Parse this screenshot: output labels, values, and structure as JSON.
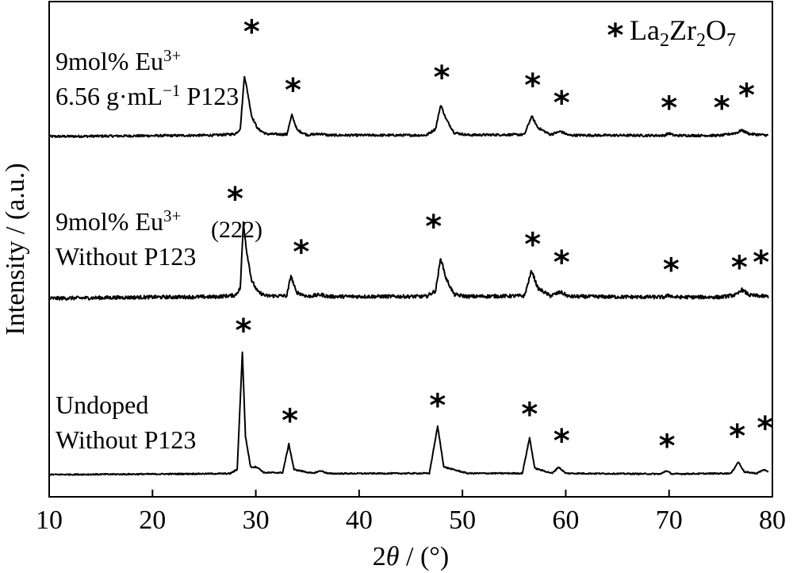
{
  "chart_data": {
    "type": "line",
    "xlabel_italic": "θ",
    "xlabel_prefix": "2",
    "xlabel_suffix": " / (°)",
    "ylabel": "Intensity / (a.u.)",
    "xlim": [
      10,
      80
    ],
    "xticks": [
      "10",
      "20",
      "30",
      "40",
      "50",
      "60",
      "70",
      "80"
    ],
    "grid": false,
    "y_ticks_shown": false,
    "legend": {
      "symbol": "*",
      "parts": [
        {
          "t": "La",
          "sub": false
        },
        {
          "t": "2",
          "sub": true
        },
        {
          "t": "Zr",
          "sub": false
        },
        {
          "t": "2",
          "sub": true
        },
        {
          "t": "O",
          "sub": false
        },
        {
          "t": "7",
          "sub": true
        }
      ],
      "placement": "top-right"
    },
    "series": [
      {
        "label_lines": [
          [
            {
              "t": "9mol% Eu",
              "sup": false
            },
            {
              "t": "3+",
              "sup": true
            }
          ],
          [
            {
              "t": "6.56 g·mL",
              "sup": false
            },
            {
              "t": "−1",
              "sup": true
            },
            {
              "t": " P123",
              "sup": false
            }
          ]
        ],
        "offset": 0,
        "noise": 0.9,
        "points": [
          [
            10.0,
            0.0
          ],
          [
            20.0,
            0.6
          ],
          [
            26.0,
            1.0
          ],
          [
            28.0,
            2.0
          ],
          [
            28.5,
            6.0
          ],
          [
            28.9,
            48.0
          ],
          [
            29.2,
            35.0
          ],
          [
            29.6,
            16.0
          ],
          [
            30.2,
            6.0
          ],
          [
            31.0,
            2.0
          ],
          [
            33.0,
            1.6
          ],
          [
            33.5,
            17.0
          ],
          [
            34.0,
            5.0
          ],
          [
            35.0,
            1.2
          ],
          [
            36.3,
            2.2
          ],
          [
            37.0,
            1.0
          ],
          [
            46.5,
            1.0
          ],
          [
            47.4,
            6.0
          ],
          [
            47.9,
            25.0
          ],
          [
            48.4,
            14.0
          ],
          [
            49.2,
            3.0
          ],
          [
            50.5,
            1.2
          ],
          [
            56.0,
            1.5
          ],
          [
            56.7,
            16.0
          ],
          [
            57.3,
            7.0
          ],
          [
            58.5,
            1.5
          ],
          [
            59.5,
            4.0
          ],
          [
            60.3,
            1.0
          ],
          [
            69.5,
            0.8
          ],
          [
            70.0,
            2.5
          ],
          [
            70.5,
            0.8
          ],
          [
            75.0,
            0.8
          ],
          [
            76.6,
            3.0
          ],
          [
            77.0,
            5.0
          ],
          [
            77.8,
            2.0
          ],
          [
            79.5,
            1.0
          ]
        ],
        "markers": [
          {
            "x": 29.6,
            "h": 74,
            "hkl": ""
          },
          {
            "x": 33.6,
            "h": 28,
            "hkl": ""
          },
          {
            "x": 48.0,
            "h": 38,
            "hkl": ""
          },
          {
            "x": 56.8,
            "h": 32,
            "hkl": ""
          },
          {
            "x": 59.6,
            "h": 18,
            "hkl": ""
          },
          {
            "x": 70.0,
            "h": 14,
            "hkl": ""
          },
          {
            "x": 75.1,
            "h": 14,
            "hkl": ""
          },
          {
            "x": 77.5,
            "h": 24,
            "hkl": ""
          }
        ]
      },
      {
        "label_lines": [
          [
            {
              "t": "9mol% Eu",
              "sup": false
            },
            {
              "t": "3+",
              "sup": true
            }
          ],
          [
            {
              "t": "Without P123",
              "sup": false
            }
          ]
        ],
        "offset": 0,
        "noise": 1.4,
        "points": [
          [
            10.0,
            0.0
          ],
          [
            20.0,
            1.0
          ],
          [
            26.0,
            1.2
          ],
          [
            28.0,
            2.5
          ],
          [
            28.5,
            8.0
          ],
          [
            28.8,
            60.0
          ],
          [
            29.1,
            38.0
          ],
          [
            29.6,
            14.0
          ],
          [
            30.2,
            5.0
          ],
          [
            31.0,
            2.0
          ],
          [
            33.0,
            2.0
          ],
          [
            33.4,
            18.0
          ],
          [
            33.9,
            5.0
          ],
          [
            35.0,
            1.5
          ],
          [
            36.3,
            3.0
          ],
          [
            37.0,
            1.5
          ],
          [
            46.5,
            1.5
          ],
          [
            47.4,
            6.0
          ],
          [
            47.9,
            32.0
          ],
          [
            48.4,
            16.0
          ],
          [
            49.2,
            3.0
          ],
          [
            50.5,
            1.5
          ],
          [
            56.0,
            2.0
          ],
          [
            56.7,
            22.0
          ],
          [
            57.3,
            8.0
          ],
          [
            58.5,
            2.0
          ],
          [
            59.5,
            5.0
          ],
          [
            60.3,
            1.5
          ],
          [
            69.5,
            1.0
          ],
          [
            70.0,
            2.5
          ],
          [
            70.5,
            1.0
          ],
          [
            75.0,
            1.0
          ],
          [
            76.6,
            3.0
          ],
          [
            77.0,
            7.0
          ],
          [
            77.8,
            2.5
          ],
          [
            79.5,
            1.5
          ]
        ],
        "markers": [
          {
            "x": 28.0,
            "h": 70,
            "hkl": "(222)"
          },
          {
            "x": 34.4,
            "h": 28,
            "hkl": ""
          },
          {
            "x": 47.2,
            "h": 48,
            "hkl": ""
          },
          {
            "x": 56.8,
            "h": 34,
            "hkl": ""
          },
          {
            "x": 59.6,
            "h": 20,
            "hkl": ""
          },
          {
            "x": 70.2,
            "h": 14,
            "hkl": ""
          },
          {
            "x": 76.8,
            "h": 16,
            "hkl": ""
          },
          {
            "x": 78.9,
            "h": 20,
            "hkl": ""
          }
        ]
      },
      {
        "label_lines": [
          [
            {
              "t": "Undoped",
              "sup": false
            }
          ],
          [
            {
              "t": "Without P123",
              "sup": false
            }
          ]
        ],
        "offset": 0,
        "noise": 0.5,
        "points": [
          [
            10.0,
            0.0
          ],
          [
            20.0,
            0.4
          ],
          [
            27.5,
            0.8
          ],
          [
            28.2,
            4.0
          ],
          [
            28.7,
            96.0
          ],
          [
            29.0,
            30.0
          ],
          [
            29.5,
            6.0
          ],
          [
            30.1,
            6.0
          ],
          [
            30.8,
            1.5
          ],
          [
            32.6,
            1.5
          ],
          [
            33.2,
            24.0
          ],
          [
            33.7,
            4.0
          ],
          [
            35.5,
            1.0
          ],
          [
            36.3,
            3.0
          ],
          [
            37.0,
            0.8
          ],
          [
            46.8,
            1.0
          ],
          [
            47.6,
            38.0
          ],
          [
            48.2,
            6.0
          ],
          [
            49.8,
            2.5
          ],
          [
            50.5,
            1.0
          ],
          [
            55.8,
            1.0
          ],
          [
            56.5,
            29.0
          ],
          [
            57.0,
            5.0
          ],
          [
            58.7,
            1.0
          ],
          [
            59.3,
            6.0
          ],
          [
            60.0,
            1.0
          ],
          [
            69.2,
            0.5
          ],
          [
            69.7,
            3.0
          ],
          [
            70.3,
            0.5
          ],
          [
            76.0,
            1.0
          ],
          [
            76.7,
            10.0
          ],
          [
            77.3,
            2.0
          ],
          [
            78.5,
            1.0
          ],
          [
            79.2,
            4.0
          ],
          [
            79.7,
            1.0
          ]
        ],
        "markers": [
          {
            "x": 28.8,
            "h": 105,
            "hkl": ""
          },
          {
            "x": 33.3,
            "h": 34,
            "hkl": ""
          },
          {
            "x": 47.6,
            "h": 46,
            "hkl": ""
          },
          {
            "x": 56.5,
            "h": 39,
            "hkl": ""
          },
          {
            "x": 59.6,
            "h": 18,
            "hkl": ""
          },
          {
            "x": 69.8,
            "h": 14,
            "hkl": ""
          },
          {
            "x": 76.6,
            "h": 22,
            "hkl": ""
          },
          {
            "x": 79.3,
            "h": 28,
            "hkl": ""
          }
        ]
      }
    ]
  }
}
